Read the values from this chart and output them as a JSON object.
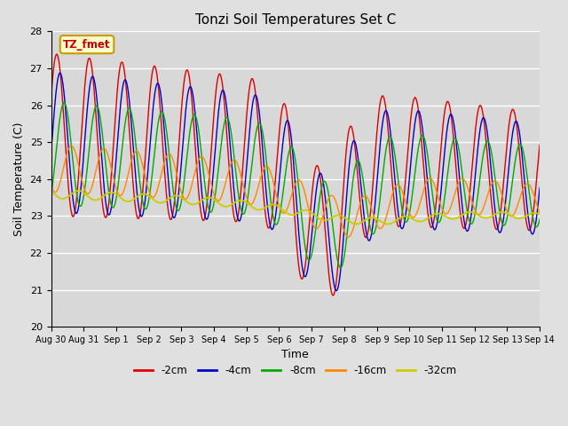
{
  "title": "Tonzi Soil Temperatures Set C",
  "xlabel": "Time",
  "ylabel": "Soil Temperature (C)",
  "ylim": [
    20.0,
    28.0
  ],
  "yticks": [
    20.0,
    21.0,
    22.0,
    23.0,
    24.0,
    25.0,
    26.0,
    27.0,
    28.0
  ],
  "xtick_labels": [
    "Aug 30",
    "Aug 31",
    "Sep 1",
    "Sep 2",
    "Sep 3",
    "Sep 4",
    "Sep 5",
    "Sep 6",
    "Sep 7",
    "Sep 8",
    "Sep 9",
    "Sep 10",
    "Sep 11",
    "Sep 12",
    "Sep 13",
    "Sep 14"
  ],
  "annotation_text": "TZ_fmet",
  "annotation_bg": "#ffffcc",
  "annotation_border": "#cc9900",
  "colors": {
    "-2cm": "#dd0000",
    "-4cm": "#0000cc",
    "-8cm": "#00aa00",
    "-16cm": "#ff8800",
    "-32cm": "#cccc00"
  },
  "legend_labels": [
    "-2cm",
    "-4cm",
    "-8cm",
    "-16cm",
    "-32cm"
  ],
  "fig_bg_color": "#e0e0e0",
  "plot_bg_color": "#d8d8d8",
  "n_days": 15,
  "pts_per_day": 144
}
